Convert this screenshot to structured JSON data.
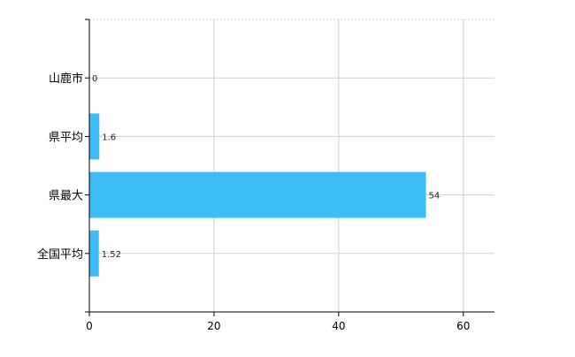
{
  "chart_data": {
    "type": "bar",
    "orientation": "horizontal",
    "categories": [
      "山鹿市",
      "県平均",
      "県最大",
      "全国平均"
    ],
    "values": [
      0,
      1.6,
      54,
      1.52
    ],
    "data_labels": [
      "0",
      "1.6",
      "54",
      "1.52"
    ],
    "title": "",
    "xlabel": "",
    "ylabel": "",
    "xlim": [
      0,
      65
    ],
    "xticks": [
      0,
      20,
      40,
      60
    ],
    "grid": true,
    "bar_color": "#3dbdf5"
  }
}
